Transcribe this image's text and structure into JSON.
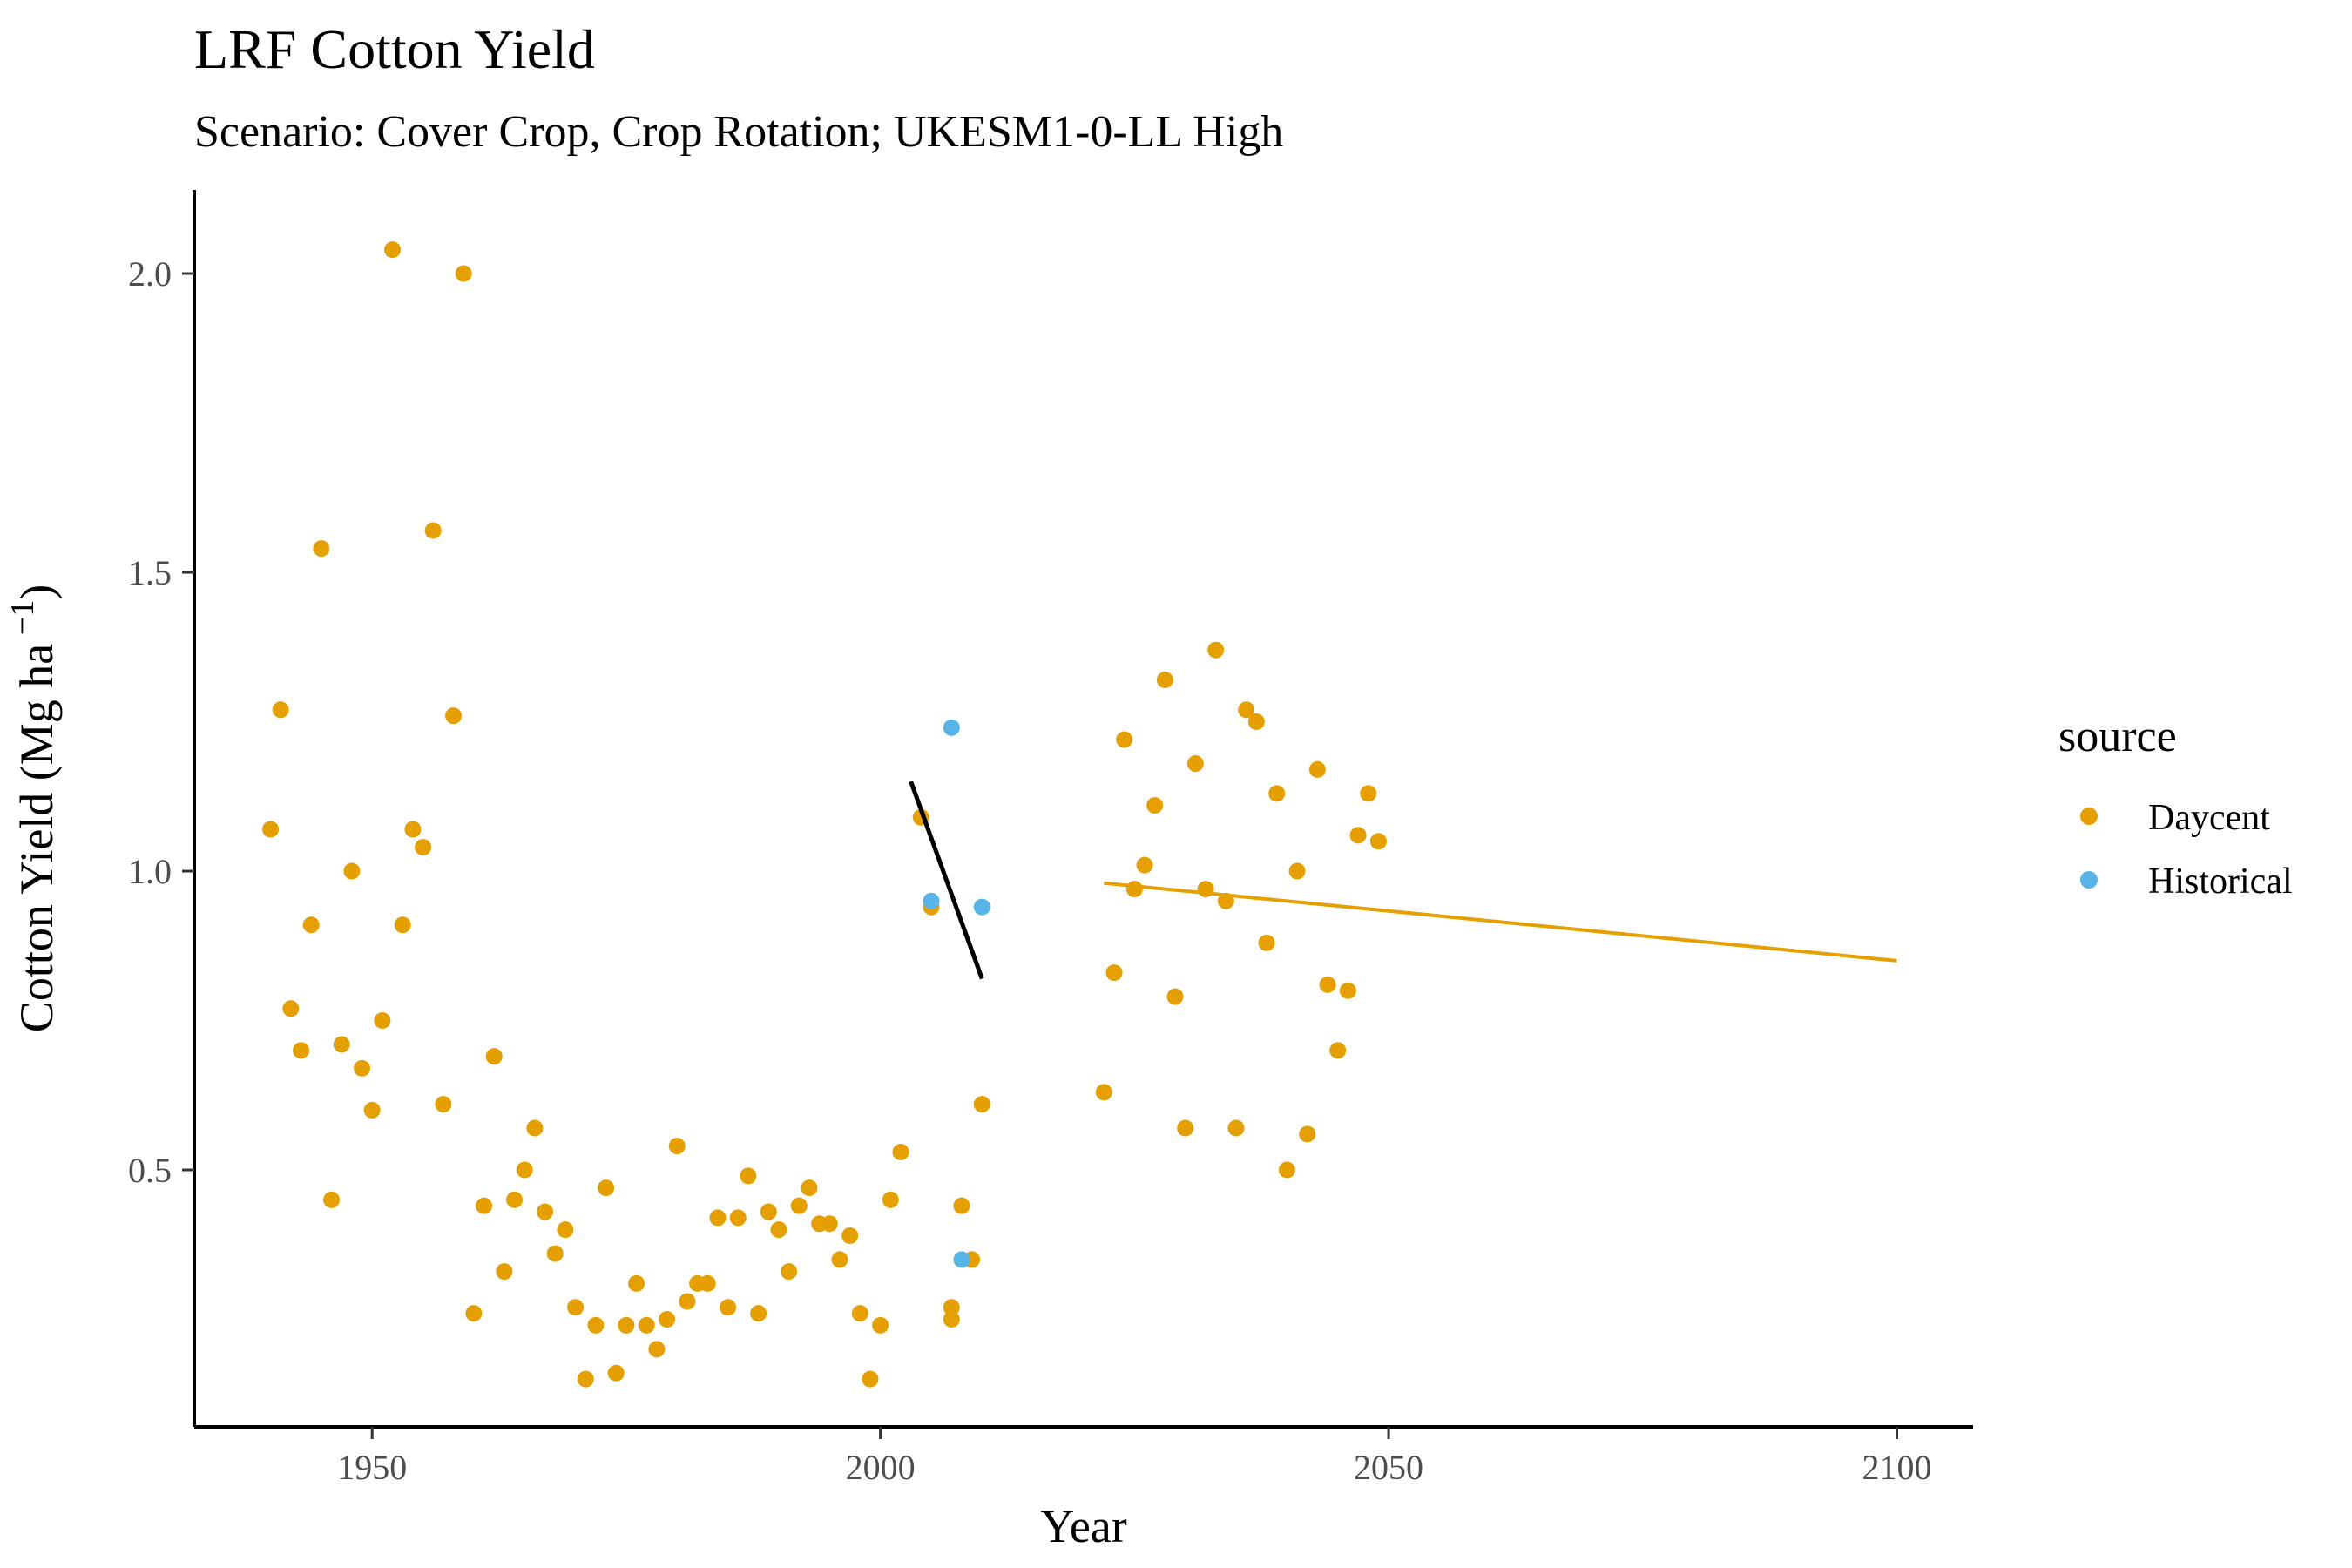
{
  "title": "LRF Cotton Yield",
  "subtitle": "Scenario: Cover Crop, Crop Rotation; UKESM1-0-LL High",
  "chart_data": {
    "type": "scatter",
    "xlabel": "Year",
    "ylabel_main": "Cotton Yield (Mg ha",
    "ylabel_sup": " −1",
    "ylabel_close": ")",
    "xlim": [
      1932.5,
      2107.5
    ],
    "ylim": [
      0.07,
      2.14
    ],
    "x_ticks": [
      1950,
      2000,
      2050,
      2100
    ],
    "y_ticks": [
      0.5,
      1.0,
      1.5,
      2.0
    ],
    "x_tick_labels": [
      "1950",
      "2000",
      "2050",
      "2100"
    ],
    "y_tick_labels": [
      "0.5",
      "1.0",
      "1.5",
      "2.0"
    ],
    "grid": false,
    "legend": {
      "title": "source",
      "position": "right",
      "entries": [
        {
          "label": "Daycent",
          "color": "#E69F00"
        },
        {
          "label": "Historical",
          "color": "#56B4E9"
        }
      ]
    },
    "series": [
      {
        "name": "Daycent",
        "color": "#E69F00",
        "points": [
          [
            1940,
            1.07
          ],
          [
            1941,
            1.27
          ],
          [
            1942,
            0.77
          ],
          [
            1943,
            0.7
          ],
          [
            1944,
            0.91
          ],
          [
            1945,
            1.54
          ],
          [
            1946,
            0.45
          ],
          [
            1947,
            0.71
          ],
          [
            1948,
            1.0
          ],
          [
            1949,
            0.67
          ],
          [
            1950,
            0.6
          ],
          [
            1951,
            0.75
          ],
          [
            1952,
            2.04
          ],
          [
            1953,
            0.91
          ],
          [
            1954,
            1.07
          ],
          [
            1955,
            1.04
          ],
          [
            1956,
            1.57
          ],
          [
            1957,
            0.61
          ],
          [
            1958,
            1.26
          ],
          [
            1959,
            2.0
          ],
          [
            1960,
            0.26
          ],
          [
            1961,
            0.44
          ],
          [
            1962,
            0.69
          ],
          [
            1963,
            0.33
          ],
          [
            1964,
            0.45
          ],
          [
            1965,
            0.5
          ],
          [
            1966,
            0.57
          ],
          [
            1967,
            0.43
          ],
          [
            1968,
            0.36
          ],
          [
            1969,
            0.4
          ],
          [
            1970,
            0.27
          ],
          [
            1971,
            0.15
          ],
          [
            1972,
            0.24
          ],
          [
            1973,
            0.47
          ],
          [
            1974,
            0.16
          ],
          [
            1975,
            0.24
          ],
          [
            1976,
            0.31
          ],
          [
            1977,
            0.24
          ],
          [
            1978,
            0.2
          ],
          [
            1979,
            0.25
          ],
          [
            1980,
            0.54
          ],
          [
            1981,
            0.28
          ],
          [
            1982,
            0.31
          ],
          [
            1983,
            0.31
          ],
          [
            1984,
            0.42
          ],
          [
            1985,
            0.27
          ],
          [
            1986,
            0.42
          ],
          [
            1987,
            0.49
          ],
          [
            1988,
            0.26
          ],
          [
            1989,
            0.43
          ],
          [
            1990,
            0.4
          ],
          [
            1991,
            0.33
          ],
          [
            1992,
            0.44
          ],
          [
            1993,
            0.47
          ],
          [
            1994,
            0.41
          ],
          [
            1995,
            0.41
          ],
          [
            1996,
            0.35
          ],
          [
            1997,
            0.39
          ],
          [
            1998,
            0.26
          ],
          [
            1999,
            0.15
          ],
          [
            2000,
            0.24
          ],
          [
            2001,
            0.45
          ],
          [
            2002,
            0.53
          ],
          [
            2004,
            1.09
          ],
          [
            2005,
            0.94
          ],
          [
            2007,
            0.27
          ],
          [
            2007,
            0.25
          ],
          [
            2008,
            0.44
          ],
          [
            2009,
            0.35
          ],
          [
            2010,
            0.61
          ],
          [
            2022,
            0.63
          ],
          [
            2023,
            0.83
          ],
          [
            2024,
            1.22
          ],
          [
            2025,
            0.97
          ],
          [
            2026,
            1.01
          ],
          [
            2027,
            1.11
          ],
          [
            2028,
            1.32
          ],
          [
            2029,
            0.79
          ],
          [
            2030,
            0.57
          ],
          [
            2031,
            1.18
          ],
          [
            2032,
            0.97
          ],
          [
            2033,
            1.37
          ],
          [
            2034,
            0.95
          ],
          [
            2035,
            0.57
          ],
          [
            2036,
            1.27
          ],
          [
            2037,
            1.25
          ],
          [
            2038,
            0.88
          ],
          [
            2039,
            1.13
          ],
          [
            2040,
            0.5
          ],
          [
            2041,
            1.0
          ],
          [
            2042,
            0.56
          ],
          [
            2043,
            1.17
          ],
          [
            2044,
            0.81
          ],
          [
            2045,
            0.7
          ],
          [
            2046,
            0.8
          ],
          [
            2047,
            1.06
          ],
          [
            2048,
            1.13
          ],
          [
            2049,
            1.05
          ]
        ]
      },
      {
        "name": "Historical",
        "color": "#56B4E9",
        "points": [
          [
            2005,
            0.95
          ],
          [
            2007,
            1.24
          ],
          [
            2008,
            0.35
          ],
          [
            2010,
            0.94
          ]
        ]
      }
    ],
    "trend_lines": [
      {
        "color": "#000000",
        "x": [
          2003,
          2010
        ],
        "y": [
          1.15,
          0.82
        ]
      },
      {
        "color": "#E69F00",
        "x": [
          2022,
          2100
        ],
        "y": [
          0.98,
          0.85
        ]
      }
    ]
  }
}
